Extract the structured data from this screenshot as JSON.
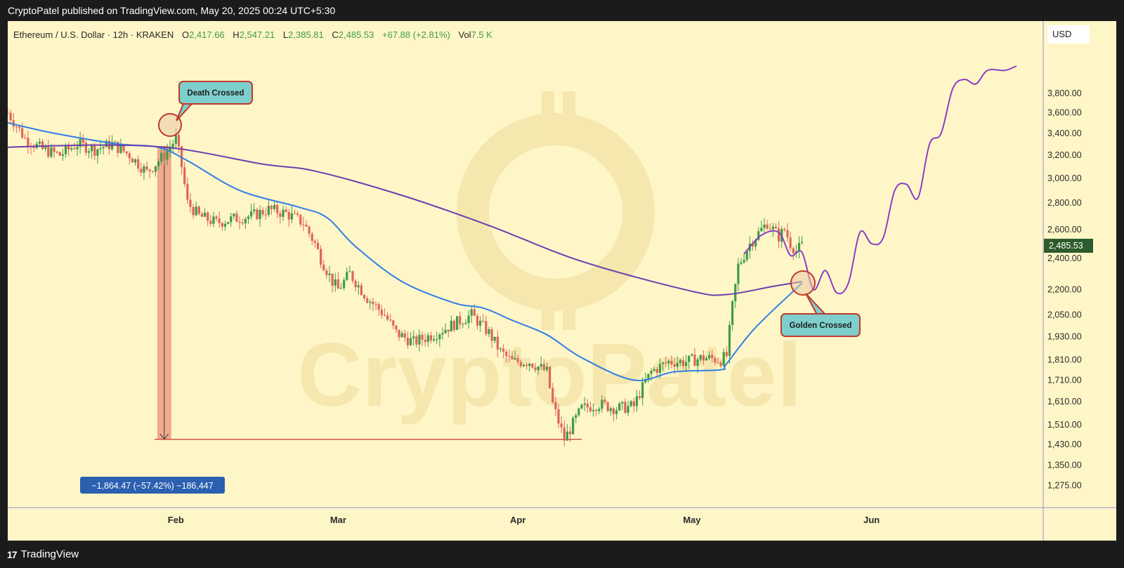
{
  "header": {
    "published_text": "CryptoPatel published on TradingView.com, May 20, 2025 00:24 UTC+5:30"
  },
  "legend": {
    "symbol": "Ethereum / U.S. Dollar · 12h · KRAKEN",
    "open_label": "O",
    "open": "2,417.66",
    "high_label": "H",
    "high": "2,547.21",
    "low_label": "L",
    "low": "2,385.81",
    "close_label": "C",
    "close": "2,485.53",
    "change": "+67.88 (+2.81%)",
    "vol_label": "Vol",
    "vol": "7.5 K"
  },
  "currency": "USD",
  "watermark": "CryptoPatel",
  "annotations": {
    "death_cross": "Death Crossed",
    "golden_cross": "Golden Crossed",
    "measure": "−1,864.47 (−57.42%) −186,447"
  },
  "footer": {
    "brand": "TradingView",
    "logo_mark": "17"
  },
  "colors": {
    "background": "#fff6c8",
    "candle_up": "#3f9c43",
    "candle_down": "#e0645a",
    "ma_fast": "#2f7fe6",
    "ma_slow": "#6a3fb0",
    "projection": "#8a3fc2",
    "callout_fill": "#7ecfcc",
    "callout_border": "#c0392b",
    "measure_fill": "#2b5fb0",
    "last_price_bg": "#2e5b2b"
  },
  "chart_data": {
    "type": "line",
    "title": "Ethereum / U.S. Dollar · 12h · KRAKEN",
    "xlabel": "",
    "ylabel": "",
    "y_scale": "log",
    "ylim": [
      1225,
      4100
    ],
    "xlim": [
      "2025-01-03",
      "2025-06-26"
    ],
    "x_ticks": [
      "Feb",
      "Mar",
      "Apr",
      "May",
      "Jun"
    ],
    "x_tick_dates": [
      "2025-02-01",
      "2025-03-01",
      "2025-04-01",
      "2025-05-01",
      "2025-06-01"
    ],
    "y_ticks": [
      3800,
      3600,
      3400,
      3200,
      3000,
      2800,
      2600,
      2400,
      2200,
      2050,
      1930,
      1810,
      1710,
      1610,
      1510,
      1430,
      1350,
      1275
    ],
    "y_tick_labels": [
      "3,800.00",
      "3,600.00",
      "3,400.00",
      "3,200.00",
      "3,000.00",
      "2,800.00",
      "2,600.00",
      "2,400.00",
      "2,200.00",
      "2,050.00",
      "1,930.00",
      "1,810.00",
      "1,710.00",
      "1,610.00",
      "1,510.00",
      "1,430.00",
      "1,350.00",
      "1,275.00"
    ],
    "last_price": 2485.53,
    "last_price_label": "2,485.53",
    "series": [
      {
        "role": "price",
        "x": [
          "2025-01-03",
          "2025-01-06",
          "2025-01-09",
          "2025-01-12",
          "2025-01-15",
          "2025-01-18",
          "2025-01-21",
          "2025-01-24",
          "2025-01-27",
          "2025-01-30",
          "2025-02-01",
          "2025-02-02",
          "2025-02-03",
          "2025-02-05",
          "2025-02-08",
          "2025-02-11",
          "2025-02-14",
          "2025-02-17",
          "2025-02-20",
          "2025-02-23",
          "2025-02-25",
          "2025-02-26",
          "2025-02-28",
          "2025-03-01",
          "2025-03-03",
          "2025-03-06",
          "2025-03-09",
          "2025-03-11",
          "2025-03-14",
          "2025-03-18",
          "2025-03-21",
          "2025-03-24",
          "2025-03-27",
          "2025-03-29",
          "2025-03-31",
          "2025-04-03",
          "2025-04-06",
          "2025-04-07",
          "2025-04-09",
          "2025-04-12",
          "2025-04-15",
          "2025-04-18",
          "2025-04-21",
          "2025-04-22",
          "2025-04-24",
          "2025-04-27",
          "2025-04-30",
          "2025-05-03",
          "2025-05-06",
          "2025-05-07",
          "2025-05-08",
          "2025-05-09",
          "2025-05-11",
          "2025-05-13",
          "2025-05-14",
          "2025-05-16",
          "2025-05-17",
          "2025-05-18",
          "2025-05-19",
          "2025-05-20"
        ],
        "values": [
          3600,
          3350,
          3250,
          3200,
          3300,
          3250,
          3300,
          3200,
          3050,
          3200,
          3350,
          3100,
          2800,
          2700,
          2650,
          2680,
          2700,
          2750,
          2720,
          2650,
          2500,
          2400,
          2250,
          2200,
          2300,
          2150,
          2050,
          1950,
          1900,
          1950,
          2000,
          2050,
          1950,
          1850,
          1800,
          1800,
          1750,
          1600,
          1450,
          1580,
          1600,
          1580,
          1590,
          1650,
          1750,
          1800,
          1800,
          1820,
          1810,
          1830,
          2100,
          2350,
          2500,
          2600,
          2650,
          2550,
          2600,
          2500,
          2450,
          2485
        ]
      },
      {
        "role": "moving_average_fast",
        "x": [
          "2025-01-03",
          "2025-01-11",
          "2025-01-22",
          "2025-01-29",
          "2025-02-03",
          "2025-02-12",
          "2025-02-22",
          "2025-02-27",
          "2025-03-04",
          "2025-03-12",
          "2025-03-21",
          "2025-03-26",
          "2025-03-31",
          "2025-04-06",
          "2025-04-12",
          "2025-04-21",
          "2025-04-28",
          "2025-05-06",
          "2025-05-07",
          "2025-05-12",
          "2025-05-20"
        ],
        "values": [
          3500,
          3400,
          3300,
          3270,
          3150,
          2900,
          2770,
          2690,
          2480,
          2250,
          2120,
          2090,
          2020,
          1940,
          1820,
          1710,
          1750,
          1760,
          1790,
          1980,
          2240
        ]
      },
      {
        "role": "moving_average_slow",
        "x": [
          "2025-01-03",
          "2025-01-19",
          "2025-02-01",
          "2025-02-16",
          "2025-02-25",
          "2025-03-12",
          "2025-03-27",
          "2025-04-12",
          "2025-05-01",
          "2025-05-07",
          "2025-05-15",
          "2025-05-20"
        ],
        "values": [
          3270,
          3290,
          3260,
          3120,
          3060,
          2860,
          2630,
          2380,
          2190,
          2170,
          2220,
          2250
        ]
      },
      {
        "role": "projection",
        "x": [
          "2025-05-10",
          "2025-05-13",
          "2025-05-16",
          "2025-05-18",
          "2025-05-20",
          "2025-05-22",
          "2025-05-24",
          "2025-05-26",
          "2025-05-28",
          "2025-05-30",
          "2025-06-01",
          "2025-06-03",
          "2025-06-05",
          "2025-06-07",
          "2025-06-09",
          "2025-06-11",
          "2025-06-13",
          "2025-06-15",
          "2025-06-17",
          "2025-06-19",
          "2025-06-21",
          "2025-06-24",
          "2025-06-26"
        ],
        "values": [
          2430,
          2560,
          2580,
          2420,
          2440,
          2200,
          2320,
          2180,
          2240,
          2580,
          2500,
          2540,
          2900,
          2950,
          2840,
          3300,
          3400,
          3850,
          3950,
          3900,
          4050,
          4050,
          4100
        ]
      }
    ],
    "grid": false,
    "legend": "top-left"
  }
}
